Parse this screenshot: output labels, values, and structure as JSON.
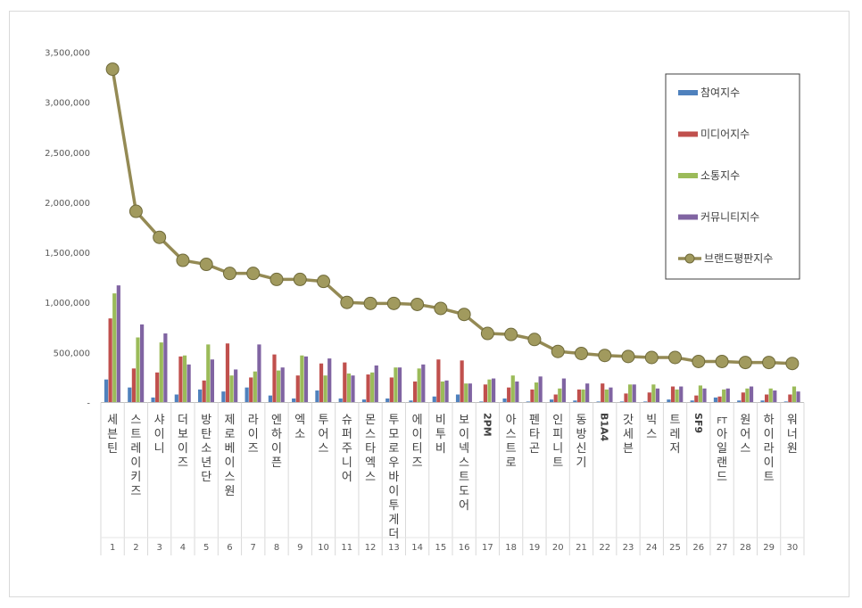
{
  "chart_data": {
    "type": "bar",
    "title": "",
    "xlabel": "",
    "ylabel": "",
    "ylim": [
      0,
      3500000
    ],
    "y_ticks": [
      "-",
      "500,000",
      "1,000,000",
      "1,500,000",
      "2,000,000",
      "2,500,000",
      "3,000,000",
      "3,500,000"
    ],
    "grid": false,
    "legend_position": "top-right",
    "categories": [
      "세븐틴",
      "스트레이키즈",
      "샤이니",
      "더보이즈",
      "방탄소년단",
      "제로베이스원",
      "라이즈",
      "엔하이픈",
      "엑소",
      "투어스",
      "슈퍼주니어",
      "몬스타엑스",
      "투모로우바이투게더",
      "에이티즈",
      "비투비",
      "보이넥스트도어",
      "2PM",
      "아스트로",
      "펜타곤",
      "인피니트",
      "동방신기",
      "B1A4",
      "갓세븐",
      "빅스",
      "트레저",
      "SF9",
      "FT아일랜드",
      "원어스",
      "하이라이트",
      "워너원"
    ],
    "ranks": [
      "1",
      "2",
      "3",
      "4",
      "5",
      "6",
      "7",
      "8",
      "9",
      "10",
      "11",
      "12",
      "13",
      "14",
      "15",
      "16",
      "17",
      "18",
      "19",
      "20",
      "21",
      "22",
      "23",
      "24",
      "25",
      "26",
      "27",
      "28",
      "29",
      "30"
    ],
    "series": [
      {
        "name": "참여지수",
        "kind": "bar",
        "color": "#4f81bd",
        "values": [
          230000,
          150000,
          50000,
          80000,
          130000,
          110000,
          150000,
          70000,
          40000,
          120000,
          40000,
          30000,
          40000,
          20000,
          60000,
          80000,
          10000,
          40000,
          10000,
          30000,
          20000,
          10000,
          10000,
          10000,
          30000,
          20000,
          50000,
          20000,
          20000,
          10000
        ]
      },
      {
        "name": "미디어지수",
        "kind": "bar",
        "color": "#c0504d",
        "values": [
          840000,
          340000,
          300000,
          460000,
          220000,
          590000,
          250000,
          480000,
          270000,
          390000,
          400000,
          280000,
          250000,
          210000,
          430000,
          420000,
          180000,
          150000,
          130000,
          80000,
          130000,
          190000,
          90000,
          100000,
          160000,
          70000,
          60000,
          100000,
          80000,
          80000
        ]
      },
      {
        "name": "소통지수",
        "kind": "bar",
        "color": "#9bbb59",
        "values": [
          1090000,
          650000,
          600000,
          470000,
          580000,
          270000,
          310000,
          320000,
          470000,
          270000,
          290000,
          300000,
          350000,
          340000,
          210000,
          190000,
          230000,
          270000,
          200000,
          140000,
          130000,
          130000,
          180000,
          180000,
          130000,
          170000,
          130000,
          140000,
          140000,
          160000
        ]
      },
      {
        "name": "커뮤니티지수",
        "kind": "bar",
        "color": "#8064a2",
        "values": [
          1170000,
          780000,
          690000,
          380000,
          430000,
          330000,
          580000,
          350000,
          460000,
          440000,
          270000,
          370000,
          350000,
          380000,
          220000,
          190000,
          240000,
          210000,
          260000,
          240000,
          190000,
          150000,
          180000,
          140000,
          160000,
          140000,
          140000,
          160000,
          120000,
          110000
        ]
      },
      {
        "name": "브랜드평판지수",
        "kind": "line",
        "color": "#948a54",
        "values": [
          3330000,
          1910000,
          1650000,
          1420000,
          1380000,
          1290000,
          1290000,
          1230000,
          1230000,
          1210000,
          1000000,
          990000,
          990000,
          980000,
          940000,
          880000,
          690000,
          680000,
          630000,
          510000,
          490000,
          470000,
          460000,
          450000,
          450000,
          410000,
          410000,
          400000,
          400000,
          390000
        ]
      }
    ]
  }
}
